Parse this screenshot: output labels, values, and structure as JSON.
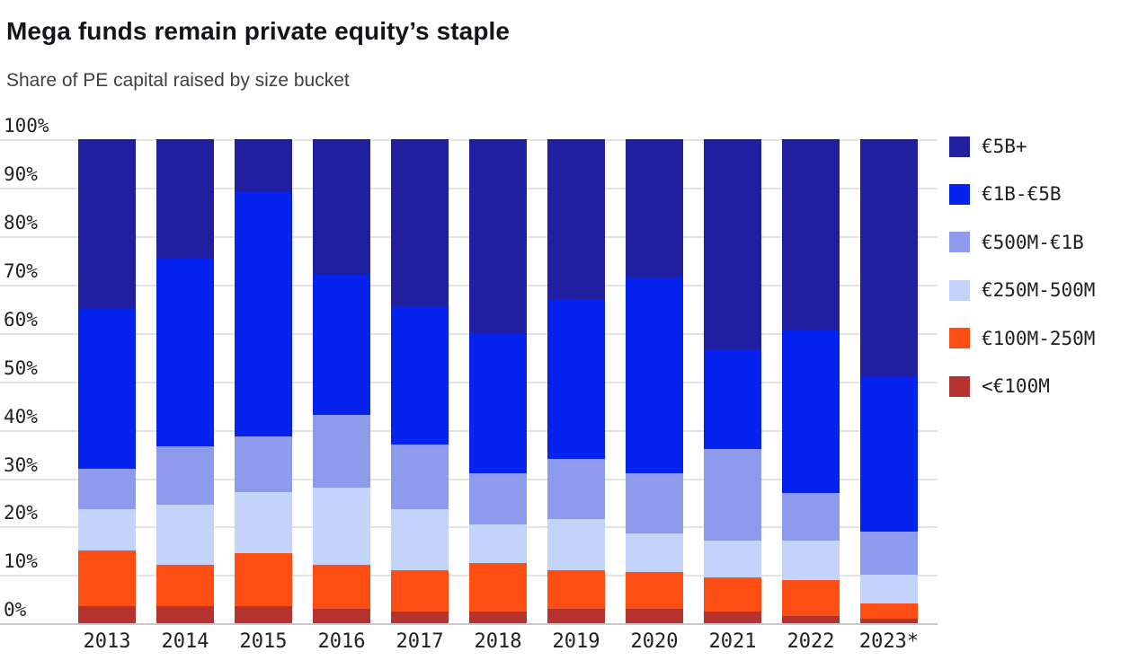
{
  "header": {
    "title": "Mega funds remain private equity’s staple",
    "subtitle": "Share of PE capital raised by size bucket"
  },
  "chart_data": {
    "type": "bar",
    "stacked": true,
    "unit": "percent",
    "title": "Mega funds remain private equity’s staple",
    "subtitle": "Share of PE capital raised by size bucket",
    "categories": [
      "2013",
      "2014",
      "2015",
      "2016",
      "2017",
      "2018",
      "2019",
      "2020",
      "2021",
      "2022",
      "2023*"
    ],
    "series": [
      {
        "name": "<€100M",
        "color": "#b5332e",
        "values": [
          3.5,
          3.5,
          3.5,
          3,
          2.5,
          2.5,
          3,
          3,
          2.5,
          1.5,
          1
        ]
      },
      {
        "name": "€100M-250M",
        "color": "#fe4e13",
        "values": [
          11.5,
          8.5,
          11,
          9,
          8.5,
          10,
          8,
          7.5,
          7,
          7.5,
          3
        ]
      },
      {
        "name": "€250M-500M",
        "color": "#c3d3f9",
        "values": [
          8.5,
          12.5,
          12.5,
          16,
          12.5,
          8,
          10.5,
          8,
          7.5,
          8,
          6
        ]
      },
      {
        "name": "€500M-€1B",
        "color": "#8e9aec",
        "values": [
          8.5,
          12,
          11.5,
          15,
          13.5,
          10.5,
          12.5,
          12.5,
          19,
          10,
          9
        ]
      },
      {
        "name": "€1B-€5B",
        "color": "#0523ec",
        "values": [
          33,
          39,
          50.5,
          29,
          28.5,
          29,
          33,
          40.5,
          20.5,
          33.5,
          32
        ]
      },
      {
        "name": "€5B+",
        "color": "#1f1fa0",
        "values": [
          35,
          24.5,
          11,
          28,
          34.5,
          40,
          33,
          28.5,
          43.5,
          39.5,
          49
        ]
      }
    ],
    "y_ticks": [
      "100%",
      "90%",
      "80%",
      "70%",
      "60%",
      "50%",
      "40%",
      "30%",
      "20%",
      "10%",
      "0%"
    ],
    "ylim": [
      0,
      100
    ],
    "grid": true,
    "legend_position": "right",
    "legend": [
      "€5B+",
      "€1B-€5B",
      "€500M-€1B",
      "€250M-500M",
      "€100M-250M",
      "<€100M"
    ]
  }
}
